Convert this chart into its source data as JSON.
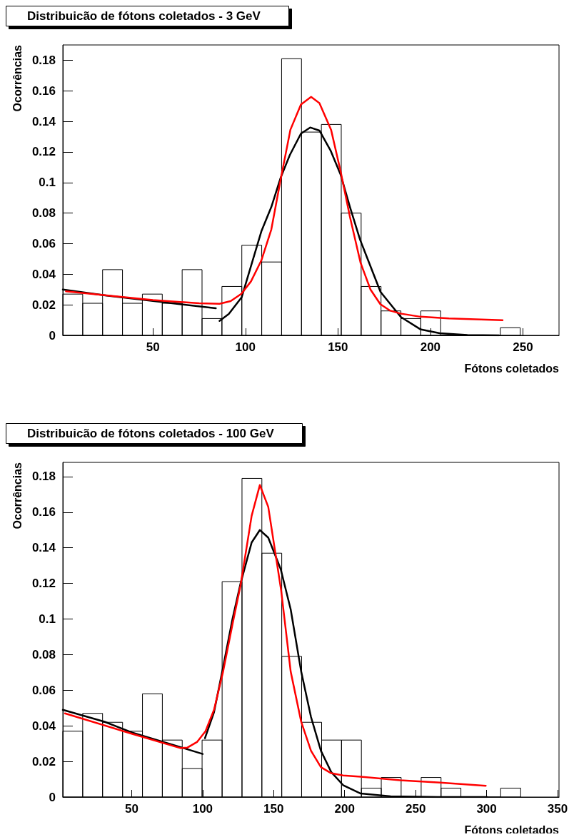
{
  "chart_data": [
    {
      "type": "histogram",
      "title": "Distribuicão de fótons coletados - 3 GeV",
      "xlabel": "Fótons coletados",
      "ylabel": "Ocorrências",
      "color": "#000000",
      "bins": [
        1.3,
        12.05,
        22.8,
        33.55,
        44.3,
        55.05,
        65.8,
        76.55,
        87.3,
        98.05,
        108.8,
        119.55,
        130.3,
        141.05,
        151.8,
        162.55,
        173.3,
        184.05,
        194.8,
        205.55,
        216.3,
        227.05,
        237.8,
        248.55
      ],
      "values": [
        0.027,
        0.021,
        0.043,
        0.021,
        0.027,
        0.021,
        0.043,
        0.011,
        0.032,
        0.059,
        0.048,
        0.181,
        0.133,
        0.138,
        0.08,
        0.032,
        0.016,
        0.011,
        0.016,
        0,
        0,
        0,
        0.005
      ],
      "xlim": [
        1.3,
        269.5
      ],
      "xticks": [
        50,
        100,
        150,
        200,
        250
      ],
      "ylim": [
        0,
        0.19
      ],
      "yticks": [
        0,
        0.02,
        0.04,
        0.06,
        0.08,
        0.1,
        0.12,
        0.14,
        0.16,
        0.18
      ],
      "series": [
        {
          "type": "line",
          "color": "#000000",
          "x": [
            1.3,
            25,
            50,
            84
          ],
          "values": [
            0.03,
            0.026,
            0.0225,
            0.0177
          ]
        },
        {
          "type": "line",
          "color": "#000000",
          "x": [
            86,
            91,
            98,
            108.6,
            114,
            119,
            124,
            130,
            135,
            140,
            146,
            151.5,
            156.5,
            162,
            173,
            184,
            194.5,
            205,
            220,
            237
          ],
          "values": [
            0.0095,
            0.014,
            0.025,
            0.068,
            0.084,
            0.103,
            0.118,
            0.132,
            0.136,
            0.134,
            0.121,
            0.105,
            0.084,
            0.0625,
            0.0285,
            0.012,
            0.004,
            0.0014,
            0.0002,
            0
          ]
        },
        {
          "type": "line",
          "color": "#ff0000",
          "x": [
            3,
            50,
            75,
            86,
            92,
            97.8,
            103,
            108.6,
            114,
            119.2,
            124.3,
            130,
            135.5,
            140,
            146.3,
            151.5,
            156.5,
            162.2,
            167.6,
            172.9,
            178,
            183.7,
            194.5,
            210,
            239
          ],
          "values": [
            0.0288,
            0.0231,
            0.021,
            0.0207,
            0.0224,
            0.0272,
            0.0353,
            0.049,
            0.0693,
            0.103,
            0.1345,
            0.151,
            0.156,
            0.152,
            0.1345,
            0.107,
            0.0775,
            0.0476,
            0.03,
            0.0204,
            0.0163,
            0.0143,
            0.0122,
            0.0111,
            0.0099
          ]
        }
      ]
    },
    {
      "type": "histogram",
      "title": "Distribuicão de fótons coletados - 100 GeV",
      "xlabel": "Fótons coletados",
      "ylabel": "Ocorrências",
      "color": "#000000",
      "bins": [
        1.5,
        15.5,
        29.5,
        43.6,
        57.6,
        71.6,
        85.6,
        99.6,
        113.7,
        127.7,
        141.7,
        155.7,
        169.7,
        183.8,
        197.8,
        211.8,
        225.8,
        239.8,
        253.9,
        267.9,
        281.9,
        295.9,
        309.9,
        324
      ],
      "values": [
        0.037,
        0.047,
        0.042,
        0.037,
        0.058,
        0.032,
        0.016,
        0.032,
        0.121,
        0.179,
        0.137,
        0.079,
        0.042,
        0.032,
        0.032,
        0.005,
        0.011,
        0,
        0.011,
        0.005,
        0,
        0,
        0.005
      ],
      "xlim": [
        1.5,
        351
      ],
      "xticks": [
        50,
        100,
        150,
        200,
        250,
        300,
        350
      ],
      "ylim": [
        0,
        0.188
      ],
      "yticks": [
        0,
        0.02,
        0.04,
        0.06,
        0.08,
        0.1,
        0.12,
        0.14,
        0.16,
        0.18
      ],
      "series": [
        {
          "type": "line",
          "color": "#000000",
          "x": [
            1.5,
            30.9,
            50,
            100
          ],
          "values": [
            0.049,
            0.0423,
            0.0363,
            0.0242
          ]
        },
        {
          "type": "line",
          "color": "#000000",
          "x": [
            101.6,
            108,
            114.4,
            121,
            126.7,
            134.5,
            140.3,
            146.2,
            155,
            162,
            169.4,
            176.3,
            183.3,
            190.5,
            198.9,
            211.3,
            232.4,
            265.9,
            300.3
          ],
          "values": [
            0.033,
            0.0477,
            0.073,
            0.1,
            0.12,
            0.143,
            0.15,
            0.1457,
            0.128,
            0.1054,
            0.0705,
            0.045,
            0.026,
            0.0141,
            0.0067,
            0.002,
            0.0004,
            0,
            0
          ]
        },
        {
          "type": "line",
          "color": "#ff0000",
          "x": [
            3,
            50,
            84.3,
            89.3,
            96,
            102,
            108,
            114.4,
            121,
            126.7,
            134.5,
            140.3,
            146.2,
            155.3,
            162,
            169.4,
            176.3,
            183.3,
            190.5,
            198.9,
            211.3,
            239.1,
            267.3,
            299.4
          ],
          "values": [
            0.047,
            0.0356,
            0.0275,
            0.0278,
            0.0309,
            0.037,
            0.049,
            0.0705,
            0.097,
            0.119,
            0.158,
            0.1753,
            0.163,
            0.116,
            0.0705,
            0.0423,
            0.026,
            0.0168,
            0.0134,
            0.0121,
            0.0114,
            0.0094,
            0.0081,
            0.0063
          ]
        }
      ]
    }
  ]
}
